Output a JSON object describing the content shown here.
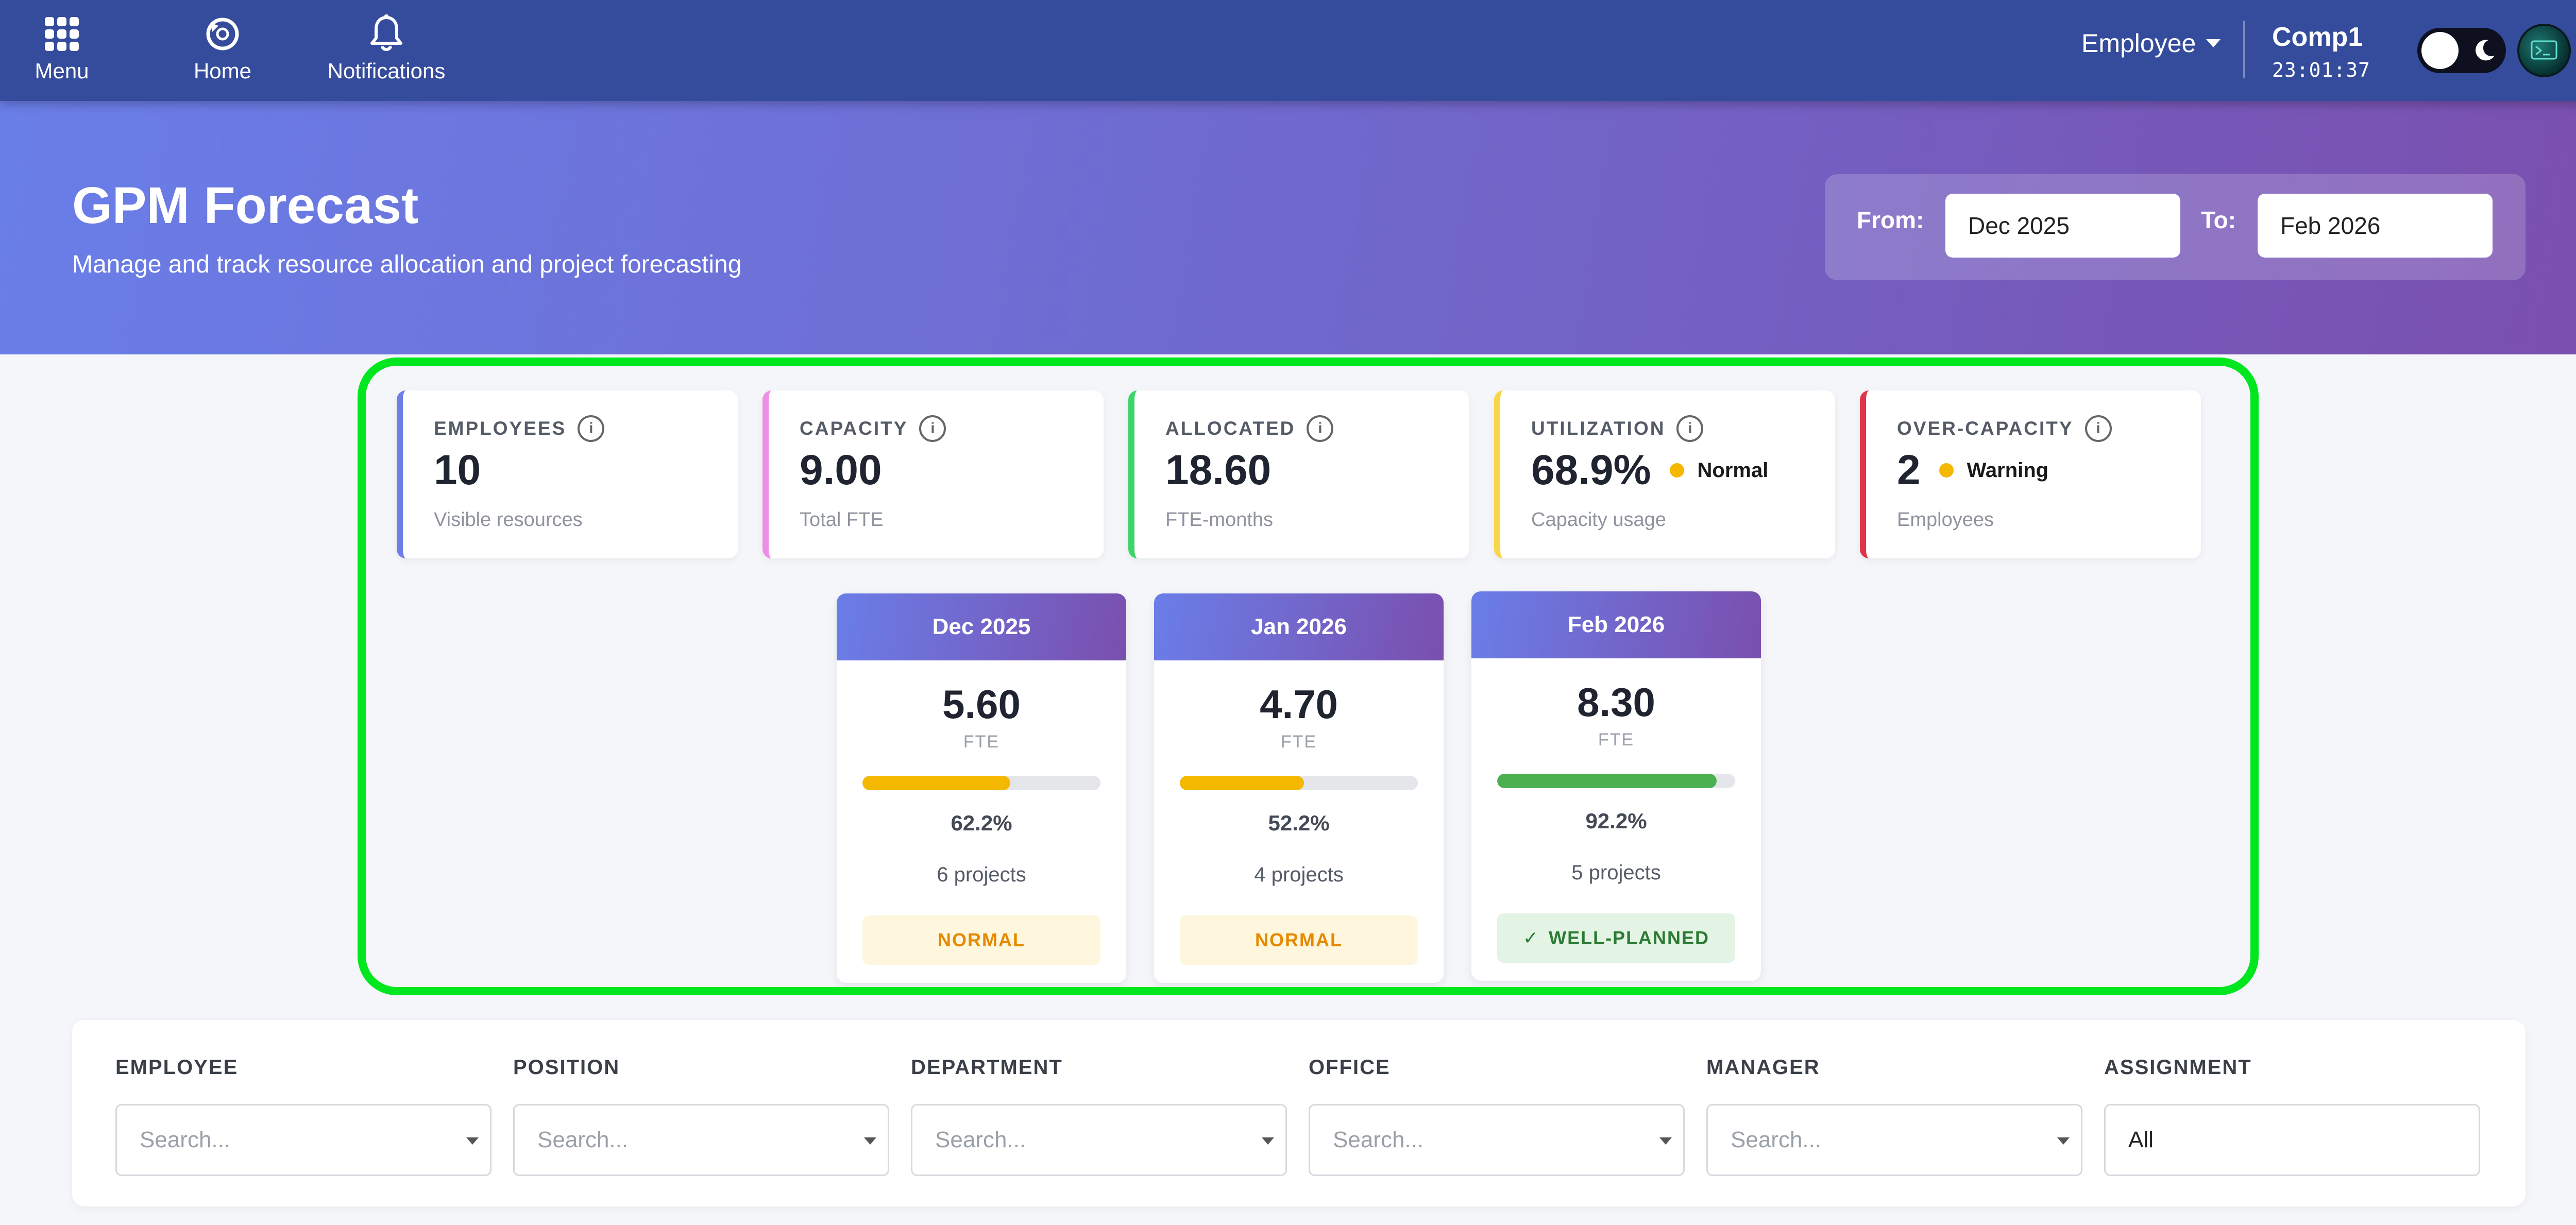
{
  "nav": {
    "menu_label": "Menu",
    "home_label": "Home",
    "notifications_label": "Notifications",
    "role": "Employee",
    "company": "Comp1",
    "clock": "23:01:37"
  },
  "hero": {
    "title": "GPM Forecast",
    "subtitle": "Manage and track resource allocation and project forecasting",
    "from_label": "From:",
    "from_value": "Dec 2025",
    "to_label": "To:",
    "to_value": "Feb 2026"
  },
  "kpis": [
    {
      "label": "EMPLOYEES",
      "value": "10",
      "badge": "",
      "sub": "Visible resources",
      "accent": "#6e7ee6"
    },
    {
      "label": "CAPACITY",
      "value": "9.00",
      "badge": "",
      "sub": "Total FTE",
      "accent": "#ee8ee6"
    },
    {
      "label": "ALLOCATED",
      "value": "18.60",
      "badge": "",
      "sub": "FTE-months",
      "accent": "#3fd46a"
    },
    {
      "label": "UTILIZATION",
      "value": "68.9%",
      "badge": "Normal",
      "sub": "Capacity usage",
      "accent": "#f7d64a"
    },
    {
      "label": "OVER-CAPACITY",
      "value": "2",
      "badge": "Warning",
      "sub": "Employees",
      "accent": "#e0344a"
    }
  ],
  "info_icon": "i",
  "months": [
    {
      "month": "Dec 2025",
      "value": "5.60",
      "unit": "FTE",
      "utilization": 0.622,
      "pct": "62.2%",
      "projects": "6 projects",
      "status": "NORMAL",
      "status_icon": "",
      "bar_color": "#f5b800"
    },
    {
      "month": "Jan 2026",
      "value": "4.70",
      "unit": "FTE",
      "utilization": 0.522,
      "pct": "52.2%",
      "projects": "4 projects",
      "status": "NORMAL",
      "status_icon": "",
      "bar_color": "#f5b800"
    },
    {
      "month": "Feb 2026",
      "value": "8.30",
      "unit": "FTE",
      "utilization": 0.922,
      "pct": "92.2%",
      "projects": "5 projects",
      "status": "WELL-PLANNED",
      "status_icon": "✓",
      "bar_color": "#4caf50"
    }
  ],
  "filters": [
    {
      "label": "EMPLOYEE",
      "placeholder": "Search...",
      "value": ""
    },
    {
      "label": "POSITION",
      "placeholder": "Search...",
      "value": ""
    },
    {
      "label": "DEPARTMENT",
      "placeholder": "Search...",
      "value": ""
    },
    {
      "label": "OFFICE",
      "placeholder": "Search...",
      "value": ""
    },
    {
      "label": "MANAGER",
      "placeholder": "Search...",
      "value": ""
    },
    {
      "label": "ASSIGNMENT",
      "placeholder": "",
      "value": "All"
    }
  ]
}
